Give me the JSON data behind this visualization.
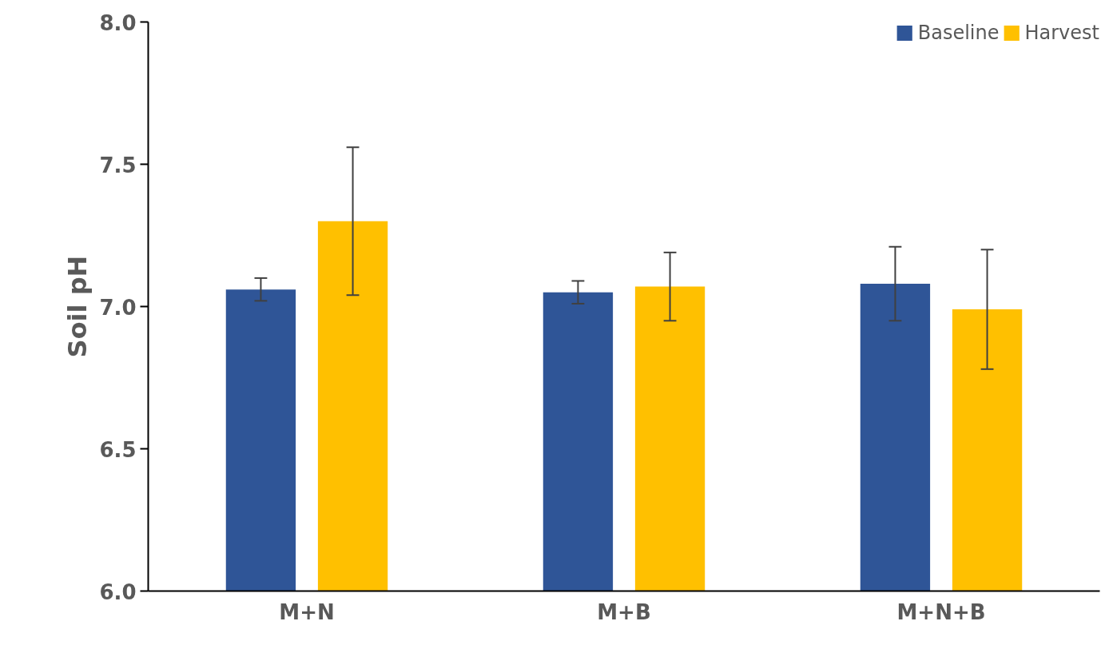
{
  "chart_data": {
    "type": "bar",
    "ylabel": "Soil pH",
    "categories": [
      "M+N",
      "M+B",
      "M+N+B"
    ],
    "series": [
      {
        "name": "Baseline",
        "color": "#2f5597",
        "values": [
          7.06,
          7.05,
          7.08
        ],
        "errors": [
          0.04,
          0.04,
          0.13
        ]
      },
      {
        "name": "Harvest",
        "color": "#ffc000",
        "values": [
          7.3,
          7.07,
          6.99
        ],
        "errors": [
          0.26,
          0.12,
          0.21
        ]
      }
    ],
    "ylim": [
      6.0,
      8.0
    ],
    "yticks": [
      {
        "value": 6.0,
        "label": "6.0"
      },
      {
        "value": 6.5,
        "label": "6.5"
      },
      {
        "value": 7.0,
        "label": "7.0"
      },
      {
        "value": 7.5,
        "label": "7.5"
      },
      {
        "value": 8.0,
        "label": "8.0"
      }
    ],
    "grid": false,
    "legend": "top right"
  }
}
